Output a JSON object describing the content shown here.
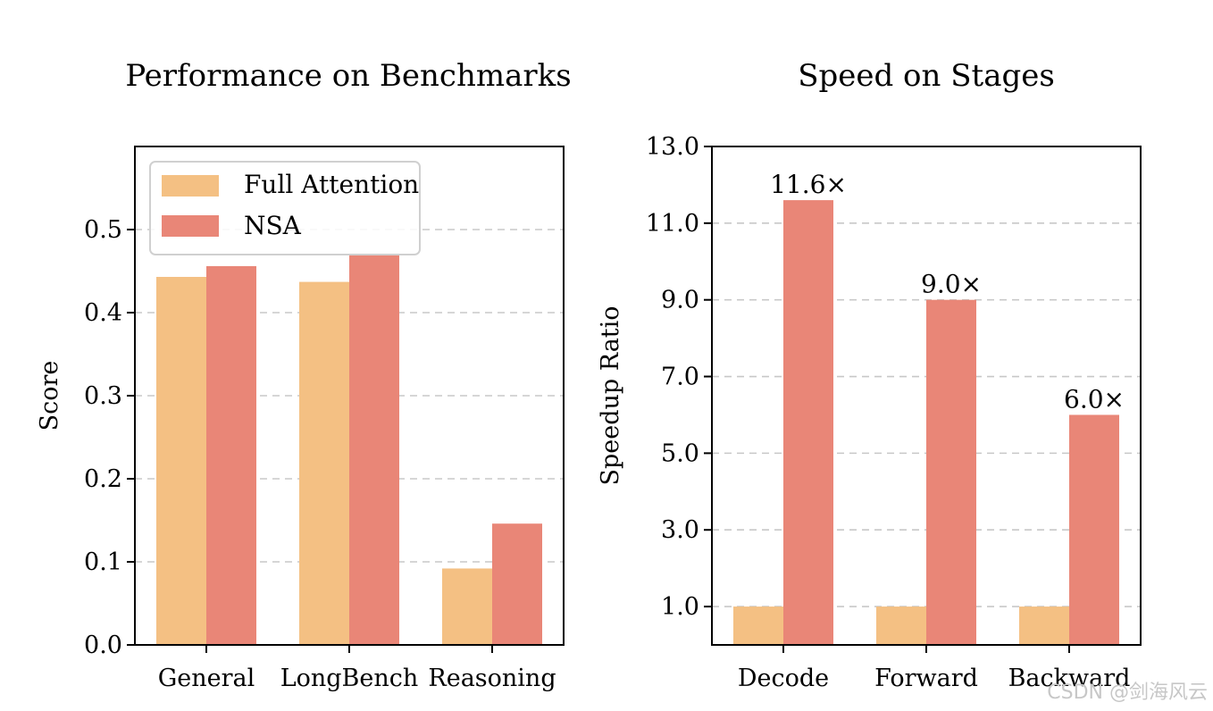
{
  "colors": {
    "full_attention": "#f4c083",
    "nsa": "#e98677",
    "grid": "#c8c8c8"
  },
  "chart_data": [
    {
      "type": "bar",
      "title": "Performance on Benchmarks",
      "xlabel": "",
      "ylabel": "Score",
      "categories": [
        "General",
        "LongBench",
        "Reasoning"
      ],
      "series": [
        {
          "name": "Full Attention",
          "values": [
            0.443,
            0.437,
            0.092
          ]
        },
        {
          "name": "NSA",
          "values": [
            0.456,
            0.469,
            0.146
          ]
        }
      ],
      "ylim": [
        0,
        0.6
      ],
      "yticks": [
        0.0,
        0.1,
        0.2,
        0.3,
        0.4,
        0.5
      ],
      "ytick_labels": [
        "0.0",
        "0.1",
        "0.2",
        "0.3",
        "0.4",
        "0.5"
      ],
      "grid": "y-dashed",
      "legend": "top-left"
    },
    {
      "type": "bar",
      "title": "Speed on Stages",
      "xlabel": "",
      "ylabel": "Speedup Ratio",
      "categories": [
        "Decode",
        "Forward",
        "Backward"
      ],
      "series": [
        {
          "name": "Full Attention",
          "values": [
            1.0,
            1.0,
            1.0
          ]
        },
        {
          "name": "NSA",
          "values": [
            11.6,
            9.0,
            6.0
          ]
        }
      ],
      "annotations": [
        "11.6×",
        "9.0×",
        "6.0×"
      ],
      "ylim": [
        0,
        13.0
      ],
      "yticks": [
        1.0,
        3.0,
        5.0,
        7.0,
        9.0,
        11.0,
        13.0
      ],
      "ytick_labels": [
        "1.0",
        "3.0",
        "5.0",
        "7.0",
        "9.0",
        "11.0",
        "13.0"
      ],
      "grid": "y-dashed",
      "legend": "none"
    }
  ],
  "watermark": "CSDN @剑海风云"
}
